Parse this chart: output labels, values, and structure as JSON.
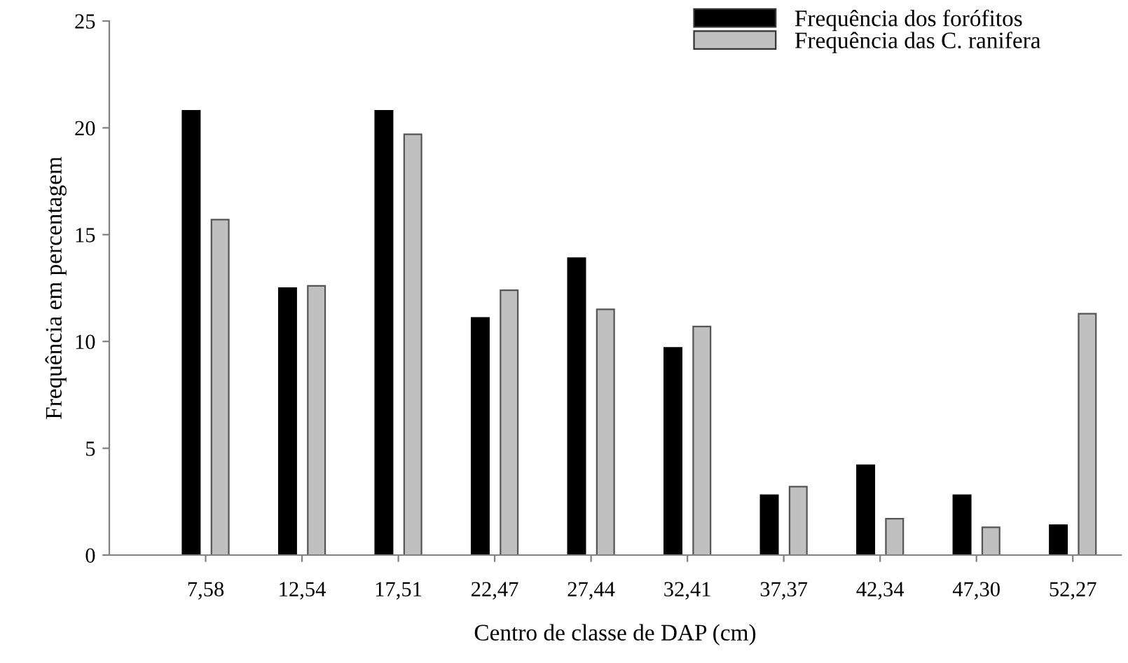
{
  "chart_data": {
    "type": "bar",
    "xlabel": "Centro de classe de DAP (cm)",
    "ylabel": "Frequência em percentagem",
    "categories": [
      "7,58",
      "12,54",
      "17,51",
      "22,47",
      "27,44",
      "32,41",
      "37,37",
      "42,34",
      "47,30",
      "52,27"
    ],
    "series": [
      {
        "name": "Frequência dos forófitos",
        "color": "#000000",
        "values": [
          20.8,
          12.5,
          20.8,
          11.1,
          13.9,
          9.7,
          2.8,
          4.2,
          2.8,
          1.4
        ]
      },
      {
        "name": "Frequência das C. ranifera",
        "color": "#c0c0c0",
        "values": [
          15.7,
          12.6,
          19.7,
          12.4,
          11.5,
          10.7,
          3.2,
          1.7,
          1.3,
          11.3
        ]
      }
    ],
    "ylim": [
      0,
      25
    ],
    "yticks": [
      0,
      5,
      10,
      15,
      20,
      25
    ],
    "grid": false,
    "legend": "top right"
  }
}
